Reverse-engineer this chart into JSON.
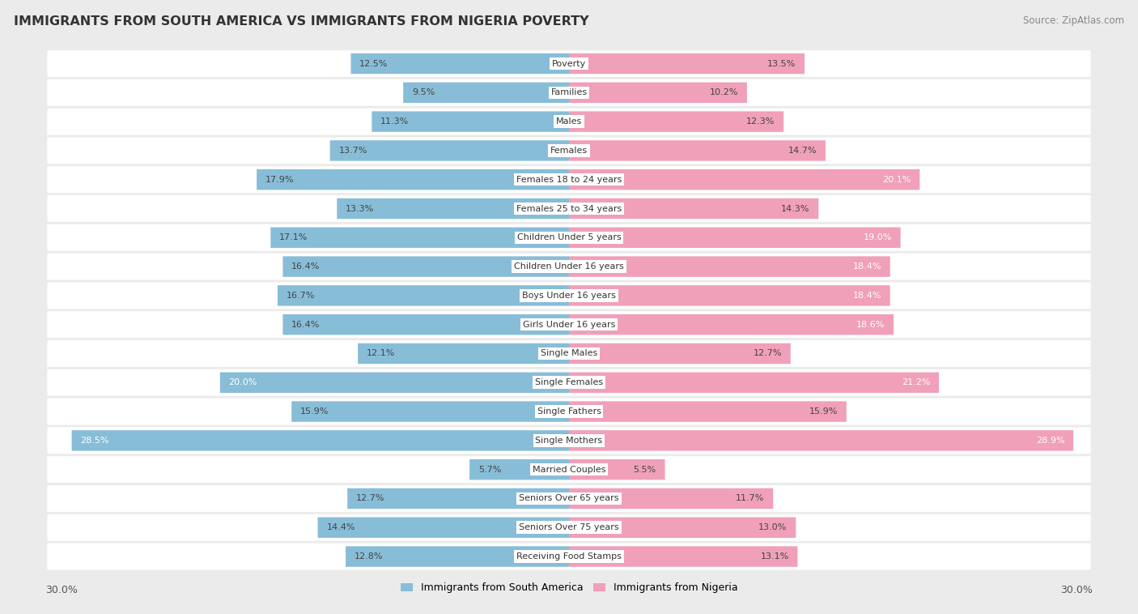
{
  "title": "IMMIGRANTS FROM SOUTH AMERICA VS IMMIGRANTS FROM NIGERIA POVERTY",
  "source": "Source: ZipAtlas.com",
  "categories": [
    "Poverty",
    "Families",
    "Males",
    "Females",
    "Females 18 to 24 years",
    "Females 25 to 34 years",
    "Children Under 5 years",
    "Children Under 16 years",
    "Boys Under 16 years",
    "Girls Under 16 years",
    "Single Males",
    "Single Females",
    "Single Fathers",
    "Single Mothers",
    "Married Couples",
    "Seniors Over 65 years",
    "Seniors Over 75 years",
    "Receiving Food Stamps"
  ],
  "south_america": [
    12.5,
    9.5,
    11.3,
    13.7,
    17.9,
    13.3,
    17.1,
    16.4,
    16.7,
    16.4,
    12.1,
    20.0,
    15.9,
    28.5,
    5.7,
    12.7,
    14.4,
    12.8
  ],
  "nigeria": [
    13.5,
    10.2,
    12.3,
    14.7,
    20.1,
    14.3,
    19.0,
    18.4,
    18.4,
    18.6,
    12.7,
    21.2,
    15.9,
    28.9,
    5.5,
    11.7,
    13.0,
    13.1
  ],
  "color_south_america": "#88bdd8",
  "color_nigeria": "#f0a0b8",
  "color_sa_text_white": [
    11,
    13
  ],
  "color_ng_text_white": [
    4,
    6,
    7,
    8,
    9,
    11,
    13
  ],
  "max_val": 30.0,
  "bg_color": "#ebebeb",
  "bar_bg": "#ffffff"
}
